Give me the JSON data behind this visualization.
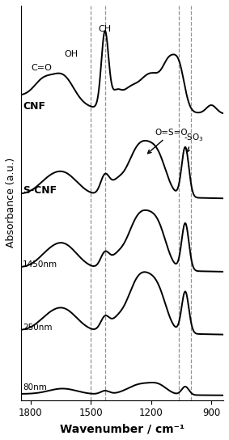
{
  "title": "",
  "xlabel": "Wavenumber / cm⁻¹",
  "ylabel": "Absorbance (a.u.)",
  "xmin": 1850,
  "xmax": 840,
  "dashed_lines": [
    1500,
    1430,
    1060,
    1000
  ],
  "spectra_labels": [
    "CNF",
    "S-CNF",
    "1450nm",
    "250nm",
    "80nm"
  ],
  "offsets": [
    4.0,
    2.8,
    1.75,
    0.85,
    0.0
  ],
  "background_color": "#ffffff",
  "line_color": "#000000"
}
